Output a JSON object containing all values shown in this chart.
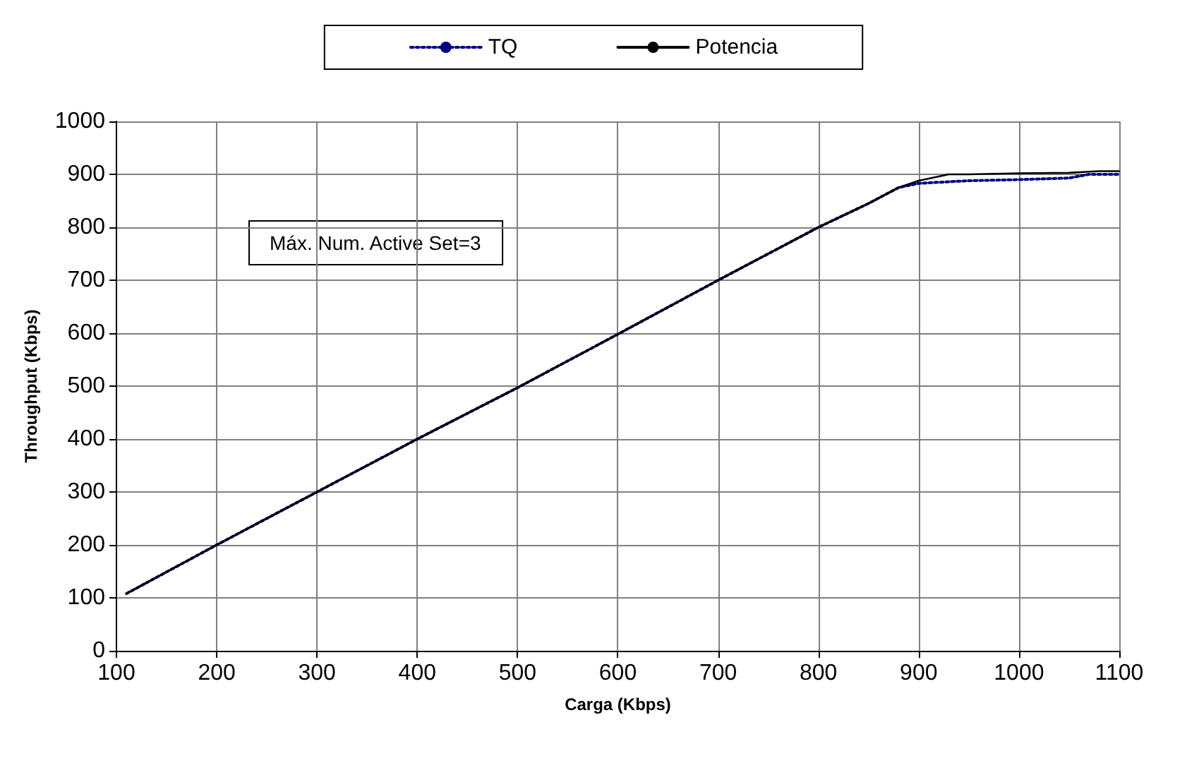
{
  "chart_data": {
    "type": "line",
    "xlabel": "Carga (Kbps)",
    "ylabel": "Throughput (Kbps)",
    "annotations": [
      "Máx. Num. Active Set=3"
    ],
    "xlim": [
      100,
      1100
    ],
    "xticks": [
      100,
      200,
      300,
      400,
      500,
      600,
      700,
      800,
      900,
      1000,
      1100
    ],
    "ylim": [
      0,
      1000
    ],
    "yticks": [
      0,
      100,
      200,
      300,
      400,
      500,
      600,
      700,
      800,
      900,
      1000
    ],
    "grid": true,
    "legend": "top",
    "marker": "none",
    "series": [
      {
        "name": "TQ",
        "color": "#000080",
        "line_style": "dotted",
        "x": [
          110,
          200,
          300,
          400,
          500,
          600,
          700,
          800,
          850,
          880,
          900,
          950,
          1000,
          1050,
          1070,
          1100
        ],
        "values": [
          108,
          200,
          300,
          400,
          497,
          598,
          700,
          800,
          845,
          875,
          883,
          888,
          890,
          893,
          900,
          900
        ]
      },
      {
        "name": "Potencia",
        "color": "#000000",
        "line_style": "solid",
        "x": [
          110,
          200,
          300,
          400,
          500,
          600,
          700,
          800,
          850,
          880,
          900,
          930,
          950,
          1000,
          1050,
          1080,
          1100
        ],
        "values": [
          108,
          200,
          300,
          400,
          497,
          598,
          700,
          800,
          845,
          875,
          888,
          900,
          900,
          902,
          903,
          906,
          906
        ]
      }
    ]
  }
}
